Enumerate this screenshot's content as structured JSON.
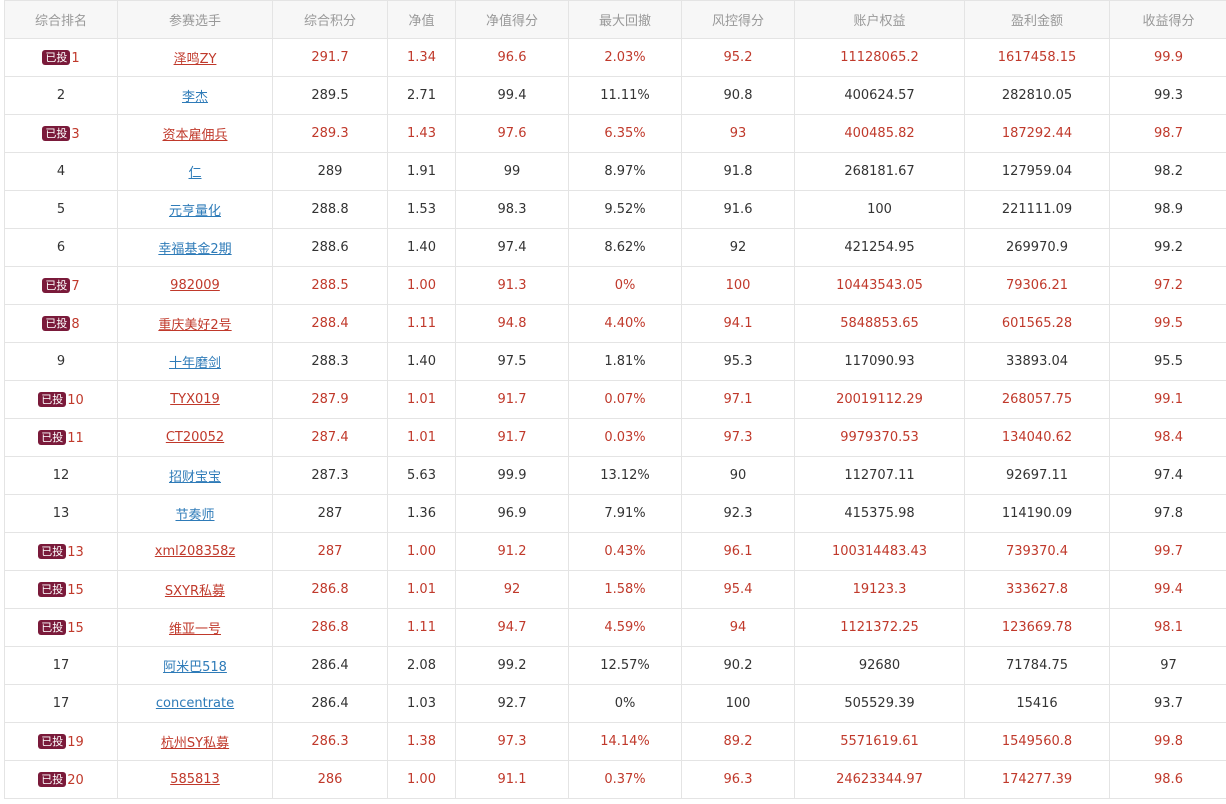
{
  "table": {
    "badge_label": "已投",
    "columns": [
      "综合排名",
      "参赛选手",
      "综合积分",
      "净值",
      "净值得分",
      "最大回撤",
      "风控得分",
      "账户权益",
      "盈利金额",
      "收益得分"
    ],
    "rows": [
      {
        "invested": true,
        "rank": "1",
        "name": "泽鸣ZY",
        "score": "291.7",
        "nav": "1.34",
        "nav_score": "96.6",
        "max_dd": "2.03%",
        "risk_score": "95.2",
        "equity": "11128065.2",
        "profit": "1617458.15",
        "return_score": "99.9"
      },
      {
        "invested": false,
        "rank": "2",
        "name": "李杰",
        "score": "289.5",
        "nav": "2.71",
        "nav_score": "99.4",
        "max_dd": "11.11%",
        "risk_score": "90.8",
        "equity": "400624.57",
        "profit": "282810.05",
        "return_score": "99.3"
      },
      {
        "invested": true,
        "rank": "3",
        "name": "资本雇佣兵",
        "score": "289.3",
        "nav": "1.43",
        "nav_score": "97.6",
        "max_dd": "6.35%",
        "risk_score": "93",
        "equity": "400485.82",
        "profit": "187292.44",
        "return_score": "98.7"
      },
      {
        "invested": false,
        "rank": "4",
        "name": "仁",
        "score": "289",
        "nav": "1.91",
        "nav_score": "99",
        "max_dd": "8.97%",
        "risk_score": "91.8",
        "equity": "268181.67",
        "profit": "127959.04",
        "return_score": "98.2"
      },
      {
        "invested": false,
        "rank": "5",
        "name": "元亨量化",
        "score": "288.8",
        "nav": "1.53",
        "nav_score": "98.3",
        "max_dd": "9.52%",
        "risk_score": "91.6",
        "equity": "100",
        "profit": "221111.09",
        "return_score": "98.9"
      },
      {
        "invested": false,
        "rank": "6",
        "name": "幸福基金2期",
        "score": "288.6",
        "nav": "1.40",
        "nav_score": "97.4",
        "max_dd": "8.62%",
        "risk_score": "92",
        "equity": "421254.95",
        "profit": "269970.9",
        "return_score": "99.2"
      },
      {
        "invested": true,
        "rank": "7",
        "name": "982009",
        "score": "288.5",
        "nav": "1.00",
        "nav_score": "91.3",
        "max_dd": "0%",
        "risk_score": "100",
        "equity": "10443543.05",
        "profit": "79306.21",
        "return_score": "97.2"
      },
      {
        "invested": true,
        "rank": "8",
        "name": "重庆美好2号",
        "score": "288.4",
        "nav": "1.11",
        "nav_score": "94.8",
        "max_dd": "4.40%",
        "risk_score": "94.1",
        "equity": "5848853.65",
        "profit": "601565.28",
        "return_score": "99.5"
      },
      {
        "invested": false,
        "rank": "9",
        "name": "十年磨剑",
        "score": "288.3",
        "nav": "1.40",
        "nav_score": "97.5",
        "max_dd": "1.81%",
        "risk_score": "95.3",
        "equity": "117090.93",
        "profit": "33893.04",
        "return_score": "95.5"
      },
      {
        "invested": true,
        "rank": "10",
        "name": "TYX019",
        "score": "287.9",
        "nav": "1.01",
        "nav_score": "91.7",
        "max_dd": "0.07%",
        "risk_score": "97.1",
        "equity": "20019112.29",
        "profit": "268057.75",
        "return_score": "99.1"
      },
      {
        "invested": true,
        "rank": "11",
        "name": "CT20052",
        "score": "287.4",
        "nav": "1.01",
        "nav_score": "91.7",
        "max_dd": "0.03%",
        "risk_score": "97.3",
        "equity": "9979370.53",
        "profit": "134040.62",
        "return_score": "98.4"
      },
      {
        "invested": false,
        "rank": "12",
        "name": "招财宝宝",
        "score": "287.3",
        "nav": "5.63",
        "nav_score": "99.9",
        "max_dd": "13.12%",
        "risk_score": "90",
        "equity": "112707.11",
        "profit": "92697.11",
        "return_score": "97.4"
      },
      {
        "invested": false,
        "rank": "13",
        "name": "节奏师",
        "score": "287",
        "nav": "1.36",
        "nav_score": "96.9",
        "max_dd": "7.91%",
        "risk_score": "92.3",
        "equity": "415375.98",
        "profit": "114190.09",
        "return_score": "97.8"
      },
      {
        "invested": true,
        "rank": "13",
        "name": "xml208358z",
        "score": "287",
        "nav": "1.00",
        "nav_score": "91.2",
        "max_dd": "0.43%",
        "risk_score": "96.1",
        "equity": "100314483.43",
        "profit": "739370.4",
        "return_score": "99.7"
      },
      {
        "invested": true,
        "rank": "15",
        "name": "SXYR私募",
        "score": "286.8",
        "nav": "1.01",
        "nav_score": "92",
        "max_dd": "1.58%",
        "risk_score": "95.4",
        "equity": "19123.3",
        "profit": "333627.8",
        "return_score": "99.4"
      },
      {
        "invested": true,
        "rank": "15",
        "name": "维亚一号",
        "score": "286.8",
        "nav": "1.11",
        "nav_score": "94.7",
        "max_dd": "4.59%",
        "risk_score": "94",
        "equity": "1121372.25",
        "profit": "123669.78",
        "return_score": "98.1"
      },
      {
        "invested": false,
        "rank": "17",
        "name": "阿米巴518",
        "score": "286.4",
        "nav": "2.08",
        "nav_score": "99.2",
        "max_dd": "12.57%",
        "risk_score": "90.2",
        "equity": "92680",
        "profit": "71784.75",
        "return_score": "97"
      },
      {
        "invested": false,
        "rank": "17",
        "name": "concentrate",
        "score": "286.4",
        "nav": "1.03",
        "nav_score": "92.7",
        "max_dd": "0%",
        "risk_score": "100",
        "equity": "505529.39",
        "profit": "15416",
        "return_score": "93.7"
      },
      {
        "invested": true,
        "rank": "19",
        "name": "杭州SY私募",
        "score": "286.3",
        "nav": "1.38",
        "nav_score": "97.3",
        "max_dd": "14.14%",
        "risk_score": "89.2",
        "equity": "5571619.61",
        "profit": "1549560.8",
        "return_score": "99.8"
      },
      {
        "invested": true,
        "rank": "20",
        "name": "585813",
        "score": "286",
        "nav": "1.00",
        "nav_score": "91.1",
        "max_dd": "0.37%",
        "risk_score": "96.3",
        "equity": "24623344.97",
        "profit": "174277.39",
        "return_score": "98.6"
      }
    ]
  },
  "colors": {
    "invested_text": "#c0392b",
    "normal_link": "#2e7bb8",
    "badge_bg": "#7a1a3a",
    "header_bg": "#f7f7f7",
    "header_text": "#999999",
    "border": "#e4e4e4"
  }
}
